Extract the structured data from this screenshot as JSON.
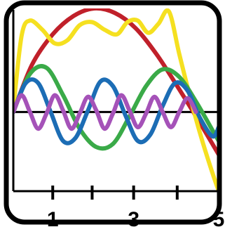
{
  "chart_data": {
    "type": "line",
    "xlabel": "",
    "ylabel": "",
    "title": "",
    "xlim": [
      0.05,
      5.0
    ],
    "ylim": [
      -2.6,
      3.4
    ],
    "x_tick_values": [
      1,
      1.95,
      2.95,
      4.0,
      5.0
    ],
    "x_tick_labels": [
      "1",
      "",
      "3",
      "",
      "5"
    ],
    "grid": false,
    "legend": "none",
    "series": [
      {
        "color": "#c0202a",
        "values_x": [
          0.05,
          0.5,
          1.0,
          1.5,
          2.0,
          2.5,
          3.0,
          3.5,
          4.0,
          4.5,
          5.0
        ],
        "values_y": [
          0.0,
          1.55,
          2.55,
          3.15,
          3.4,
          3.25,
          2.75,
          1.9,
          0.85,
          -0.25,
          -1.4
        ]
      },
      {
        "color": "#f5e020",
        "values_x": [
          0.05,
          0.25,
          0.45,
          0.75,
          1.05,
          1.35,
          1.65,
          1.95,
          2.25,
          2.55,
          2.8,
          3.05,
          3.3,
          3.55,
          3.8,
          4.05,
          4.3,
          4.55,
          4.8,
          5.0
        ],
        "values_y": [
          0.1,
          2.5,
          3.0,
          2.7,
          2.25,
          2.35,
          2.85,
          2.95,
          2.7,
          2.55,
          2.95,
          3.0,
          2.6,
          2.9,
          3.3,
          1.9,
          0.55,
          -0.7,
          -1.8,
          -2.6
        ]
      },
      {
        "color": "#3aaa48",
        "values_x": [
          0.05,
          0.45,
          0.85,
          1.25,
          1.65,
          2.05,
          2.45,
          2.85,
          3.25,
          3.65,
          4.05,
          4.45,
          4.85,
          5.0
        ],
        "values_y": [
          0.0,
          1.25,
          1.45,
          0.55,
          -0.55,
          -1.15,
          -1.05,
          -0.15,
          0.85,
          1.4,
          1.15,
          0.35,
          -0.6,
          -0.95
        ]
      },
      {
        "color": "#1c6db5",
        "values_x": [
          0.05,
          0.35,
          0.65,
          0.95,
          1.25,
          1.55,
          1.85,
          2.15,
          2.45,
          2.75,
          3.05,
          3.35,
          3.65,
          3.95,
          4.25,
          4.55,
          4.85,
          5.0
        ],
        "values_y": [
          0.0,
          0.95,
          0.95,
          0.0,
          -0.95,
          -0.85,
          0.05,
          1.0,
          0.85,
          -0.1,
          -0.95,
          -0.75,
          0.2,
          0.95,
          0.7,
          -0.2,
          -0.8,
          -0.5
        ]
      },
      {
        "color": "#a552b8",
        "values_x": [
          0.05,
          0.25,
          0.45,
          0.65,
          0.85,
          1.05,
          1.25,
          1.45,
          1.65,
          1.85,
          2.05,
          2.25,
          2.45,
          2.65,
          2.85,
          3.05,
          3.25,
          3.45,
          3.65,
          3.85,
          4.05,
          4.25,
          4.45
        ],
        "values_y": [
          0.0,
          0.55,
          0.0,
          -0.55,
          -0.05,
          0.55,
          0.05,
          -0.55,
          -0.05,
          0.5,
          0.05,
          -0.55,
          -0.05,
          0.55,
          0.05,
          -0.5,
          -0.05,
          0.5,
          0.0,
          -0.5,
          0.0,
          0.45,
          0.0
        ]
      }
    ],
    "zero_line_y": 0
  },
  "frame": {
    "border_color": "#000000",
    "background": "#ffffff"
  }
}
